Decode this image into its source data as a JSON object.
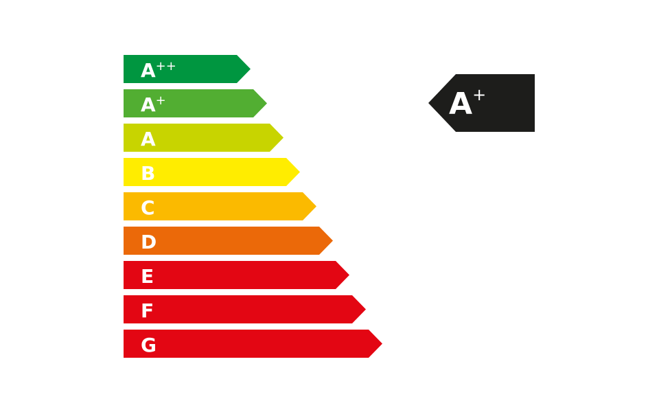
{
  "scale": [
    {
      "letter": "A",
      "sup": "++",
      "color": "#009640"
    },
    {
      "letter": "A",
      "sup": "+",
      "color": "#52ae32"
    },
    {
      "letter": "A",
      "color": "#c8d400"
    },
    {
      "letter": "B",
      "color": "#ffed00"
    },
    {
      "letter": "C",
      "color": "#fbba00"
    },
    {
      "letter": "D",
      "color": "#eb6909"
    },
    {
      "letter": "E",
      "color": "#e30613"
    },
    {
      "letter": "F",
      "color": "#e30613"
    },
    {
      "letter": "G",
      "color": "#e30613"
    }
  ],
  "indicator": {
    "letter": "A",
    "sup": "+",
    "color": "#1d1d1b"
  }
}
